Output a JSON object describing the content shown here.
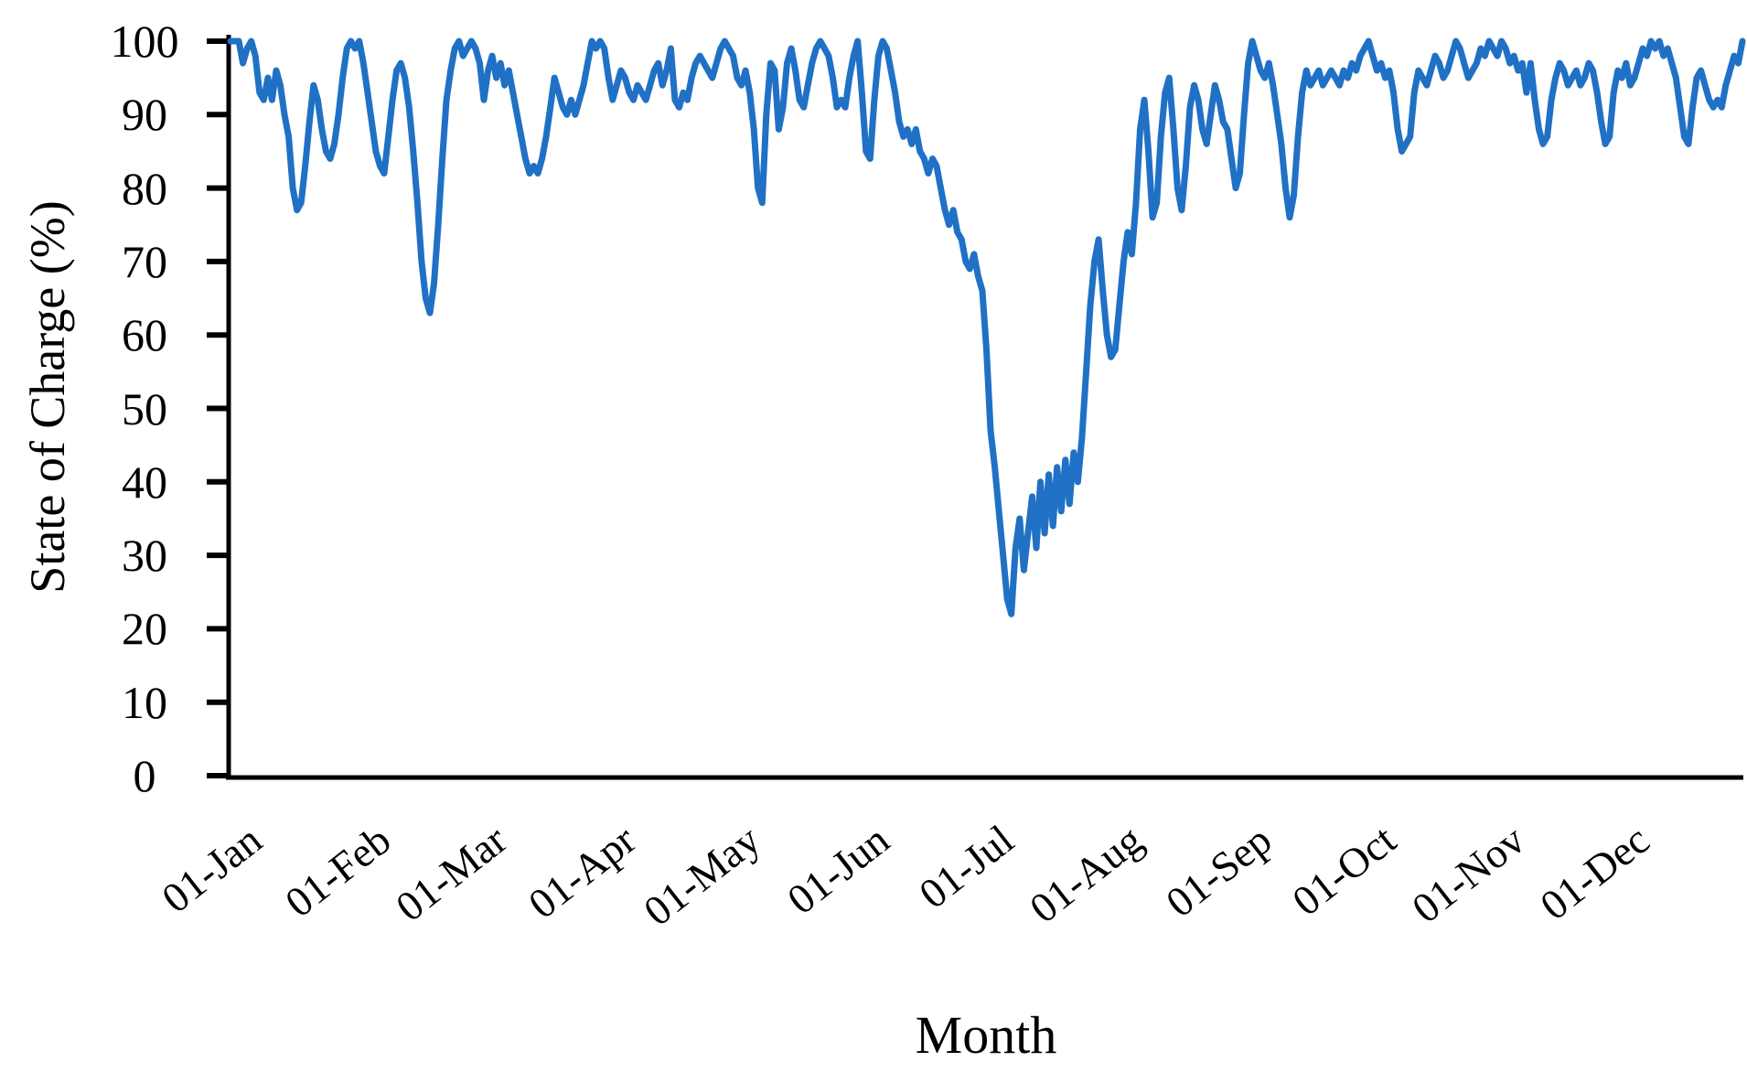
{
  "chart_data": {
    "type": "line",
    "title": "",
    "xlabel": "Month",
    "ylabel": "State of Charge (%)",
    "ylim": [
      0,
      100
    ],
    "yticks": [
      0,
      10,
      20,
      30,
      40,
      50,
      60,
      70,
      80,
      90,
      100
    ],
    "x_tick_labels": [
      "01-Jan",
      "01-Feb",
      "01-Mar",
      "01-Apr",
      "01-May",
      "01-Jun",
      "01-Jul",
      "01-Aug",
      "01-Sep",
      "01-Oct",
      "01-Nov",
      "01-Dec"
    ],
    "month_start_day_offsets": [
      0,
      31,
      59,
      90,
      120,
      151,
      181,
      212,
      243,
      273,
      304,
      334
    ],
    "grid": false,
    "legend": "none",
    "axis_color": "#000000",
    "series": [
      {
        "name": "State of Charge",
        "color": "#2071c5",
        "x_unit": "day-of-year",
        "start_day": 1,
        "values": [
          100,
          100,
          100,
          97,
          99,
          100,
          98,
          93,
          92,
          95,
          92,
          96,
          94,
          90,
          87,
          80,
          77,
          78,
          83,
          89,
          94,
          92,
          88,
          85,
          84,
          86,
          90,
          95,
          99,
          100,
          99,
          100,
          97,
          93,
          89,
          85,
          83,
          82,
          87,
          92,
          96,
          97,
          95,
          91,
          85,
          78,
          70,
          65,
          63,
          67,
          75,
          84,
          92,
          96,
          99,
          100,
          98,
          99,
          100,
          99,
          97,
          92,
          96,
          98,
          95,
          97,
          94,
          96,
          93,
          90,
          87,
          84,
          82,
          83,
          82,
          84,
          87,
          91,
          95,
          93,
          91,
          90,
          92,
          90,
          92,
          94,
          97,
          100,
          99,
          100,
          99,
          95,
          92,
          94,
          96,
          95,
          93,
          92,
          94,
          93,
          92,
          94,
          96,
          97,
          94,
          96,
          99,
          92,
          91,
          93,
          92,
          95,
          97,
          98,
          97,
          96,
          95,
          97,
          99,
          100,
          99,
          98,
          95,
          94,
          96,
          93,
          88,
          80,
          78,
          90,
          97,
          96,
          88,
          91,
          97,
          99,
          96,
          92,
          91,
          94,
          97,
          99,
          100,
          99,
          98,
          95,
          91,
          92,
          91,
          95,
          98,
          100,
          93,
          85,
          84,
          92,
          98,
          100,
          99,
          96,
          93,
          89,
          87,
          88,
          86,
          88,
          85,
          84,
          82,
          84,
          83,
          80,
          77,
          75,
          77,
          74,
          73,
          70,
          69,
          71,
          68,
          66,
          58,
          47,
          42,
          36,
          30,
          24,
          22,
          31,
          35,
          28,
          33,
          38,
          31,
          40,
          33,
          41,
          34,
          42,
          36,
          43,
          37,
          44,
          40,
          46,
          55,
          64,
          70,
          73,
          66,
          60,
          57,
          58,
          64,
          70,
          74,
          71,
          78,
          88,
          92,
          85,
          76,
          78,
          87,
          93,
          95,
          88,
          80,
          77,
          83,
          91,
          94,
          92,
          88,
          86,
          90,
          94,
          92,
          89,
          88,
          84,
          80,
          82,
          90,
          97,
          100,
          98,
          96,
          95,
          97,
          94,
          90,
          86,
          80,
          76,
          79,
          87,
          93,
          96,
          94,
          95,
          96,
          94,
          95,
          96,
          95,
          94,
          96,
          95,
          97,
          96,
          98,
          99,
          100,
          98,
          96,
          97,
          95,
          96,
          93,
          88,
          85,
          86,
          87,
          93,
          96,
          95,
          94,
          96,
          98,
          97,
          95,
          96,
          98,
          100,
          99,
          97,
          95,
          96,
          97,
          99,
          98,
          100,
          99,
          98,
          100,
          99,
          97,
          98,
          96,
          97,
          93,
          97,
          92,
          88,
          86,
          87,
          92,
          95,
          97,
          96,
          94,
          95,
          96,
          94,
          95,
          97,
          96,
          93,
          89,
          86,
          87,
          93,
          96,
          95,
          97,
          94,
          95,
          97,
          99,
          98,
          100,
          99,
          100,
          98,
          99,
          97,
          95,
          91,
          87,
          86,
          91,
          95,
          96,
          94,
          92,
          91,
          92,
          91,
          94,
          96,
          98,
          97,
          100
        ]
      }
    ]
  }
}
